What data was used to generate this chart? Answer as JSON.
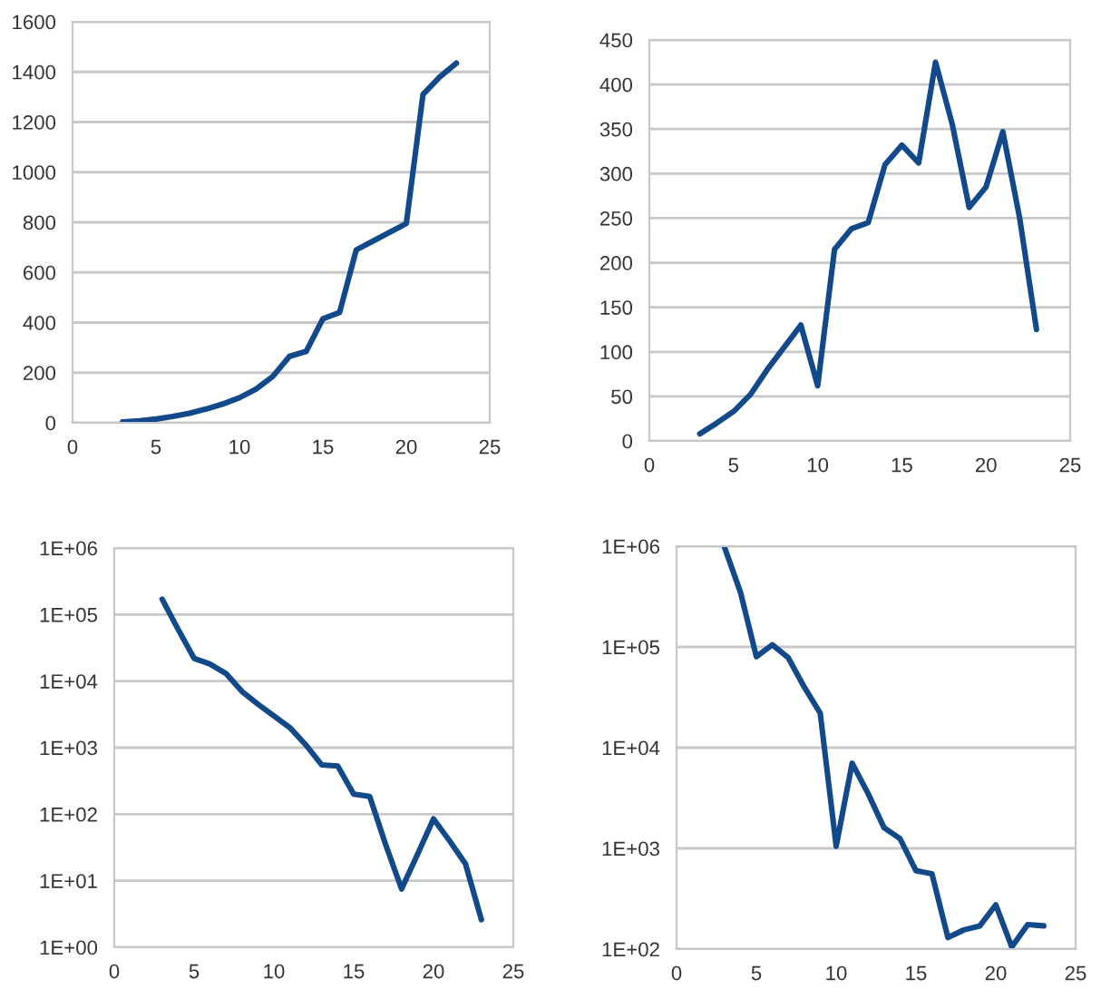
{
  "chart_data": [
    {
      "type": "line",
      "x": [
        3,
        4,
        5,
        6,
        7,
        8,
        9,
        10,
        11,
        12,
        13,
        14,
        15,
        16,
        17,
        18,
        19,
        20,
        21,
        22,
        23
      ],
      "series": [
        {
          "color": "#11498a",
          "values": [
            3,
            8,
            15,
            25,
            38,
            55,
            75,
            100,
            135,
            185,
            265,
            285,
            415,
            440,
            690,
            725,
            760,
            795,
            1310,
            1380,
            1435
          ]
        }
      ],
      "xlim": [
        0,
        25
      ],
      "xticks": [
        0,
        5,
        10,
        15,
        20,
        25
      ],
      "ylim": [
        0,
        1600
      ],
      "yticks": [
        0,
        200,
        400,
        600,
        800,
        1000,
        1200,
        1400,
        1600
      ],
      "grid": "y",
      "legend": false
    },
    {
      "type": "line",
      "x": [
        3,
        4,
        5,
        6,
        7,
        8,
        9,
        10,
        11,
        12,
        13,
        14,
        15,
        16,
        17,
        18,
        19,
        20,
        21,
        22,
        23
      ],
      "series": [
        {
          "color": "#11498a",
          "values": [
            8,
            20,
            33,
            52,
            80,
            105,
            130,
            62,
            215,
            238,
            245,
            310,
            332,
            312,
            425,
            355,
            262,
            285,
            347,
            250,
            125
          ]
        }
      ],
      "xlim": [
        0,
        25
      ],
      "xticks": [
        0,
        5,
        10,
        15,
        20,
        25
      ],
      "ylim": [
        0,
        450
      ],
      "yticks": [
        0,
        50,
        100,
        150,
        200,
        250,
        300,
        350,
        400,
        450
      ],
      "grid": "y",
      "legend": false
    },
    {
      "type": "line",
      "x": [
        3,
        4,
        5,
        6,
        7,
        8,
        9,
        10,
        11,
        12,
        13,
        14,
        15,
        16,
        17,
        18,
        19,
        20,
        21,
        22,
        23
      ],
      "series": [
        {
          "color": "#11498a",
          "values": [
            170000,
            60000,
            22000,
            18000,
            13000,
            7000,
            4500,
            3000,
            2000,
            1100,
            550,
            530,
            200,
            185,
            35,
            7.5,
            25,
            85,
            40,
            18,
            2.6
          ]
        }
      ],
      "log": "y",
      "xlim": [
        0,
        25
      ],
      "xticks": [
        0,
        5,
        10,
        15,
        20,
        25
      ],
      "ylim": [
        1,
        1000000
      ],
      "yticks": [
        {
          "value": 1,
          "label": "1E+00"
        },
        {
          "value": 10,
          "label": "1E+01"
        },
        {
          "value": 100,
          "label": "1E+02"
        },
        {
          "value": 1000,
          "label": "1E+03"
        },
        {
          "value": 10000,
          "label": "1E+04"
        },
        {
          "value": 100000,
          "label": "1E+05"
        },
        {
          "value": 1000000,
          "label": "1E+06"
        }
      ],
      "grid": "y",
      "legend": false
    },
    {
      "type": "line",
      "x": [
        3,
        4,
        5,
        6,
        7,
        8,
        9,
        10,
        11,
        12,
        13,
        14,
        15,
        16,
        17,
        18,
        19,
        20,
        21,
        22,
        23
      ],
      "series": [
        {
          "color": "#11498a",
          "values": [
            980000,
            350000,
            80000,
            105000,
            78000,
            40000,
            22000,
            1050,
            7000,
            3500,
            1600,
            1250,
            600,
            560,
            130,
            155,
            170,
            275,
            105,
            175,
            170
          ]
        }
      ],
      "log": "y",
      "xlim": [
        0,
        25
      ],
      "xticks": [
        0,
        5,
        10,
        15,
        20,
        25
      ],
      "ylim": [
        100,
        1000000
      ],
      "yticks": [
        {
          "value": 100,
          "label": "1E+02"
        },
        {
          "value": 1000,
          "label": "1E+03"
        },
        {
          "value": 10000,
          "label": "1E+04"
        },
        {
          "value": 100000,
          "label": "1E+05"
        },
        {
          "value": 1000000,
          "label": "1E+06"
        }
      ],
      "grid": "y",
      "legend": false
    }
  ]
}
